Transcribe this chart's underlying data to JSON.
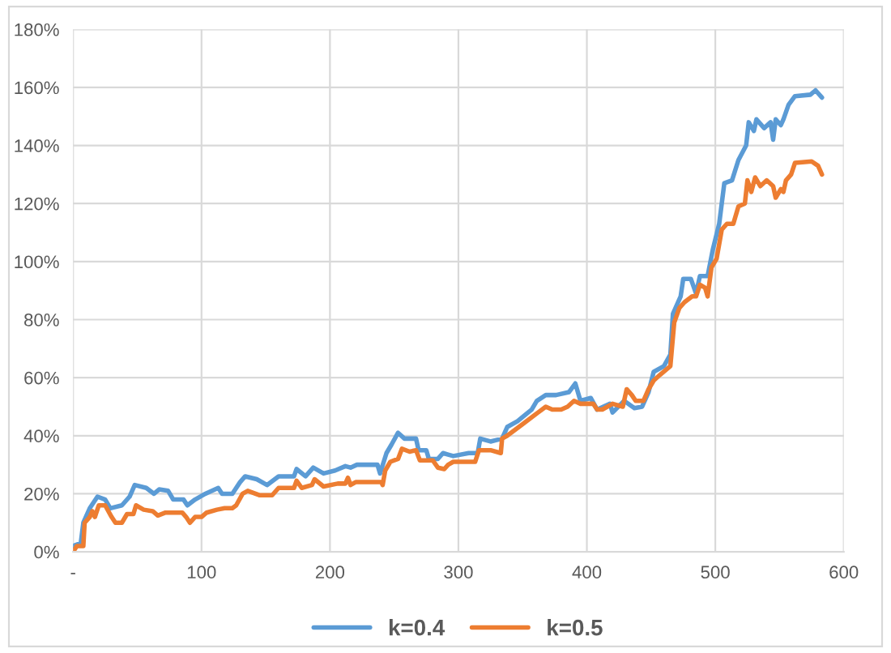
{
  "chart_data": {
    "type": "line",
    "series": [
      {
        "name": "k=0.4",
        "color": "#5b9bd5",
        "x": [
          0,
          6,
          8,
          13,
          19,
          25,
          29,
          38,
          44,
          48,
          57,
          63,
          67,
          74,
          78,
          86,
          89,
          95,
          103,
          113,
          116,
          124,
          130,
          134,
          143,
          151,
          160,
          172,
          174,
          181,
          187,
          195,
          204,
          212,
          216,
          221,
          237,
          239,
          244,
          248,
          253,
          258,
          267,
          269,
          275,
          277,
          284,
          288,
          292,
          296,
          308,
          315,
          317,
          325,
          334,
          338,
          346,
          357,
          361,
          368,
          376,
          386,
          391,
          395,
          403,
          408,
          418,
          420,
          429,
          437,
          443,
          448,
          452,
          460,
          465,
          467,
          473,
          475,
          481,
          485,
          488,
          494,
          498,
          503,
          507,
          513,
          518,
          524,
          526,
          530,
          532,
          538,
          543,
          545,
          547,
          551,
          553,
          557,
          562,
          574,
          578,
          583
        ],
        "values": [
          2,
          3,
          10,
          15,
          19,
          18,
          15,
          16,
          19,
          23,
          22,
          20,
          21.5,
          21,
          18,
          18,
          16,
          18,
          20,
          22,
          20,
          20,
          24,
          26,
          25,
          23,
          26,
          26,
          28.5,
          26,
          29,
          27,
          28,
          29.5,
          29,
          30,
          30,
          27,
          34,
          37,
          41,
          39,
          39,
          35,
          35,
          32,
          32,
          34,
          33.5,
          33,
          34,
          34,
          39,
          38,
          39,
          43,
          45,
          49,
          52,
          54,
          54,
          55,
          58,
          52,
          53,
          49,
          51,
          48,
          52,
          49.5,
          50,
          55,
          62,
          64,
          68,
          82,
          88,
          94,
          94,
          89,
          95,
          95,
          104,
          113,
          127,
          128,
          135,
          140,
          148,
          145,
          149,
          146,
          148,
          142,
          149,
          147,
          149,
          154,
          157,
          157.5,
          159,
          156.5
        ]
      },
      {
        "name": "k=0.5",
        "color": "#ed7d31",
        "x": [
          0,
          3,
          8,
          9,
          13,
          15,
          17,
          20,
          25,
          30,
          33,
          38,
          42,
          47,
          49,
          55,
          62,
          66,
          72,
          85,
          88,
          91,
          95,
          100,
          104,
          112,
          118,
          124,
          127,
          132,
          136,
          145,
          155,
          160,
          172,
          174,
          178,
          186,
          188,
          195,
          206,
          212,
          214,
          216,
          220,
          240,
          241,
          243,
          247,
          253,
          256,
          262,
          267,
          270,
          280,
          284,
          289,
          292,
          296,
          300,
          313,
          316,
          325,
          333,
          334,
          338,
          350,
          362,
          368,
          373,
          380,
          385,
          390,
          395,
          405,
          408,
          412,
          420,
          428,
          431,
          435,
          438,
          444,
          448,
          452,
          457,
          465,
          468,
          472,
          476,
          482,
          485,
          488,
          492,
          494,
          497,
          501,
          505,
          509,
          514,
          518,
          523,
          525,
          528,
          531,
          535,
          540,
          545,
          547,
          551,
          553,
          555,
          559,
          562,
          575,
          580,
          583
        ],
        "values": [
          0,
          2,
          2,
          10,
          12,
          14,
          12,
          16,
          16,
          12,
          10,
          10,
          13,
          13,
          16,
          14.5,
          14,
          12.5,
          13.5,
          13.5,
          12,
          10,
          12,
          12,
          13.5,
          14.5,
          15,
          15,
          16,
          20,
          21,
          19.5,
          19.5,
          22,
          22,
          24.5,
          22,
          23,
          25,
          22.5,
          23.5,
          23.5,
          25.5,
          23,
          24,
          24,
          23,
          28,
          31,
          32,
          35.5,
          34.5,
          35,
          31.5,
          31.5,
          29,
          28.5,
          30,
          31,
          31,
          31,
          35,
          35,
          34,
          39,
          40,
          44,
          48,
          50,
          49,
          49,
          50,
          52,
          51,
          51,
          49,
          49,
          51,
          50,
          56,
          54,
          52,
          52,
          56,
          59,
          61,
          64,
          79,
          84,
          86,
          88,
          88,
          92,
          91,
          88,
          98,
          101,
          111,
          113,
          113,
          119,
          120,
          128,
          124,
          129,
          126,
          128,
          126,
          122,
          125,
          124,
          128,
          130,
          134,
          134.5,
          133,
          130
        ]
      }
    ],
    "xlim": [
      0,
      600
    ],
    "xticks": [
      {
        "value": 0,
        "label": "-"
      },
      100,
      200,
      300,
      400,
      500,
      600
    ],
    "ylim": [
      0,
      180
    ],
    "yticks": [
      {
        "value": 0,
        "label": "0%"
      },
      {
        "value": 20,
        "label": "20%"
      },
      {
        "value": 40,
        "label": "40%"
      },
      {
        "value": 60,
        "label": "60%"
      },
      {
        "value": 80,
        "label": "80%"
      },
      {
        "value": 100,
        "label": "100%"
      },
      {
        "value": 120,
        "label": "120%"
      },
      {
        "value": 140,
        "label": "140%"
      },
      {
        "value": 160,
        "label": "160%"
      },
      {
        "value": 180,
        "label": "180%"
      }
    ],
    "grid": true,
    "legend": "bottom",
    "line_style": "solid"
  }
}
